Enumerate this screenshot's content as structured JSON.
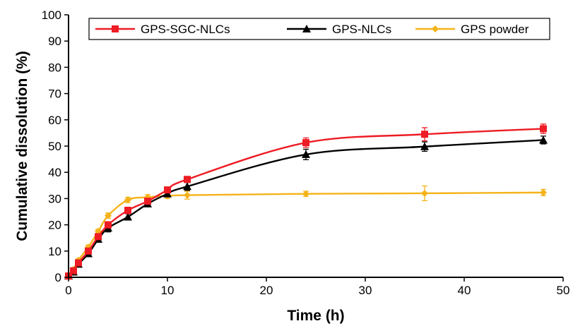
{
  "chart_data": {
    "type": "line",
    "title": "",
    "xlabel": "Time (h)",
    "ylabel": "Cumulative dissolution (%)",
    "xlim": [
      0,
      50
    ],
    "ylim": [
      0,
      100
    ],
    "xticks": [
      "0",
      "10",
      "20",
      "30",
      "40",
      "50"
    ],
    "yticks": [
      "0",
      "10",
      "20",
      "30",
      "40",
      "50",
      "60",
      "70",
      "80",
      "90",
      "100"
    ],
    "grid": false,
    "legend": "top, boxed, horizontal",
    "series": [
      {
        "name": "GPS-SGC-NLCs",
        "color": "#ee1c24",
        "marker": "square",
        "x": [
          0,
          0.5,
          1,
          2,
          3,
          4,
          6,
          8,
          10,
          12,
          24,
          36,
          48
        ],
        "y": [
          0.5,
          2.5,
          5.5,
          10,
          15.5,
          20,
          25.5,
          29,
          33.3,
          37.3,
          51.3,
          54.5,
          56.6
        ],
        "err": [
          0.3,
          0.5,
          0.6,
          0.8,
          1.0,
          1.2,
          1.2,
          1.0,
          1.0,
          1.1,
          1.8,
          2.5,
          1.8
        ]
      },
      {
        "name": "GPS-NLCs",
        "color": "#000000",
        "marker": "triangle",
        "x": [
          0,
          0.5,
          1,
          2,
          3,
          4,
          6,
          8,
          10,
          12,
          24,
          36,
          48
        ],
        "y": [
          0.5,
          2,
          5,
          9,
          14.5,
          18.8,
          23,
          28,
          31.8,
          34.6,
          46.8,
          49.8,
          52.3
        ],
        "err": [
          0.3,
          0.5,
          0.6,
          0.8,
          1.0,
          1.5,
          1.2,
          1.0,
          1.0,
          1.5,
          2.0,
          1.8,
          1.5
        ]
      },
      {
        "name": "GPS powder",
        "color": "#f5b31a",
        "marker": "diamond",
        "x": [
          0,
          0.5,
          1,
          2,
          3,
          4,
          6,
          8,
          10,
          12,
          24,
          36,
          48
        ],
        "y": [
          1,
          3,
          6.5,
          11.5,
          17.5,
          23.5,
          29.5,
          30.5,
          31,
          31.3,
          31.8,
          32,
          32.3
        ],
        "err": [
          0.3,
          0.5,
          0.6,
          0.8,
          0.8,
          1.0,
          1.0,
          1.0,
          1.0,
          1.5,
          1.0,
          2.8,
          1.2
        ]
      }
    ]
  }
}
